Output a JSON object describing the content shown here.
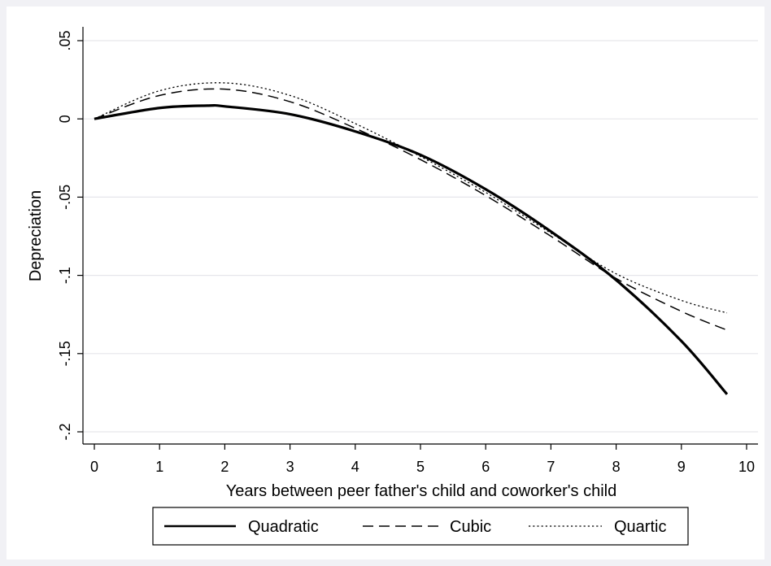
{
  "chart_data": {
    "type": "line",
    "xlabel": "Years between peer father's child and coworker's child",
    "ylabel": "Depreciation",
    "xlim": [
      0,
      10
    ],
    "ylim": [
      -0.2,
      0.05
    ],
    "x_ticks": [
      0,
      1,
      2,
      3,
      4,
      5,
      6,
      7,
      8,
      9,
      10
    ],
    "x_tick_labels": [
      "0",
      "1",
      "2",
      "3",
      "4",
      "5",
      "6",
      "7",
      "8",
      "9",
      "10"
    ],
    "y_ticks": [
      0.05,
      0,
      -0.05,
      -0.1,
      -0.15,
      -0.2
    ],
    "y_tick_labels": [
      ".05",
      "0",
      "-.05",
      "-.1",
      "-.15",
      "-.2"
    ],
    "grid": "horizontal",
    "legend_position": "bottom",
    "series": [
      {
        "name": "Quadratic",
        "style": "solid",
        "x": [
          0,
          1,
          1.75,
          2,
          3,
          4,
          5,
          6,
          7,
          8,
          9,
          9.7
        ],
        "y": [
          0,
          0.007,
          0.0085,
          0.008,
          0.003,
          -0.008,
          -0.023,
          -0.045,
          -0.072,
          -0.103,
          -0.142,
          -0.176
        ]
      },
      {
        "name": "Cubic",
        "style": "dashed",
        "x": [
          0,
          1,
          2,
          3,
          4,
          5,
          6,
          7,
          8,
          9,
          9.7
        ],
        "y": [
          0,
          0.015,
          0.019,
          0.011,
          -0.006,
          -0.026,
          -0.049,
          -0.075,
          -0.102,
          -0.123,
          -0.135
        ]
      },
      {
        "name": "Quartic",
        "style": "dotted",
        "x": [
          0,
          1,
          2,
          3,
          4,
          5,
          6,
          7,
          8,
          9,
          9.7
        ],
        "y": [
          0,
          0.018,
          0.023,
          0.015,
          -0.003,
          -0.024,
          -0.047,
          -0.073,
          -0.099,
          -0.116,
          -0.124
        ]
      }
    ],
    "colors": {
      "line": "#000000",
      "grid": "#e6e6ea",
      "plot_bg": "#ffffff",
      "page_bg": "#f1f1f5"
    }
  }
}
